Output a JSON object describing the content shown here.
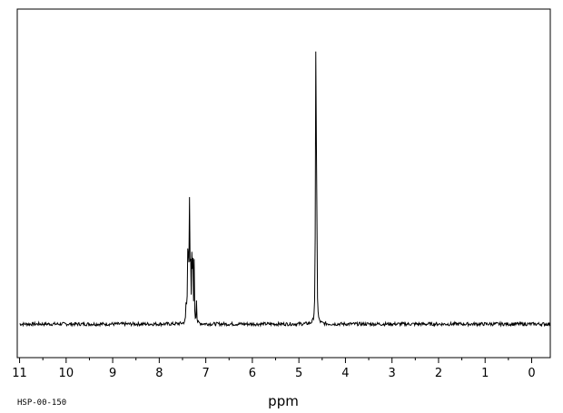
{
  "chart_data": {
    "type": "line",
    "xlabel": "ppm",
    "spectrum_code": "HSP-00-150",
    "xlim": [
      11.05,
      -0.4
    ],
    "x_reversed": true,
    "ylim": [
      -0.1,
      1.0
    ],
    "grid": false,
    "ticks": [
      11,
      10,
      9,
      8,
      7,
      6,
      5,
      4,
      3,
      2,
      1,
      0
    ],
    "tick_labels": [
      "11",
      "10",
      "9",
      "8",
      "7",
      "6",
      "5",
      "4",
      "3",
      "2",
      "1",
      "0"
    ],
    "peaks": [
      {
        "ppm": 7.42,
        "intensity": 0.1
      },
      {
        "ppm": 7.39,
        "intensity": 0.25
      },
      {
        "ppm": 7.37,
        "intensity": 0.31
      },
      {
        "ppm": 7.35,
        "intensity": 0.38
      },
      {
        "ppm": 7.33,
        "intensity": 0.3
      },
      {
        "ppm": 7.3,
        "intensity": 0.2
      },
      {
        "ppm": 7.28,
        "intensity": 0.34
      },
      {
        "ppm": 7.25,
        "intensity": 0.2
      },
      {
        "ppm": 7.2,
        "intensity": 0.08
      },
      {
        "ppm": 4.64,
        "intensity": 1.0
      },
      {
        "ppm": 4.62,
        "intensity": 0.85
      }
    ]
  },
  "colors": {
    "line": "#000000",
    "background": "#ffffff"
  }
}
